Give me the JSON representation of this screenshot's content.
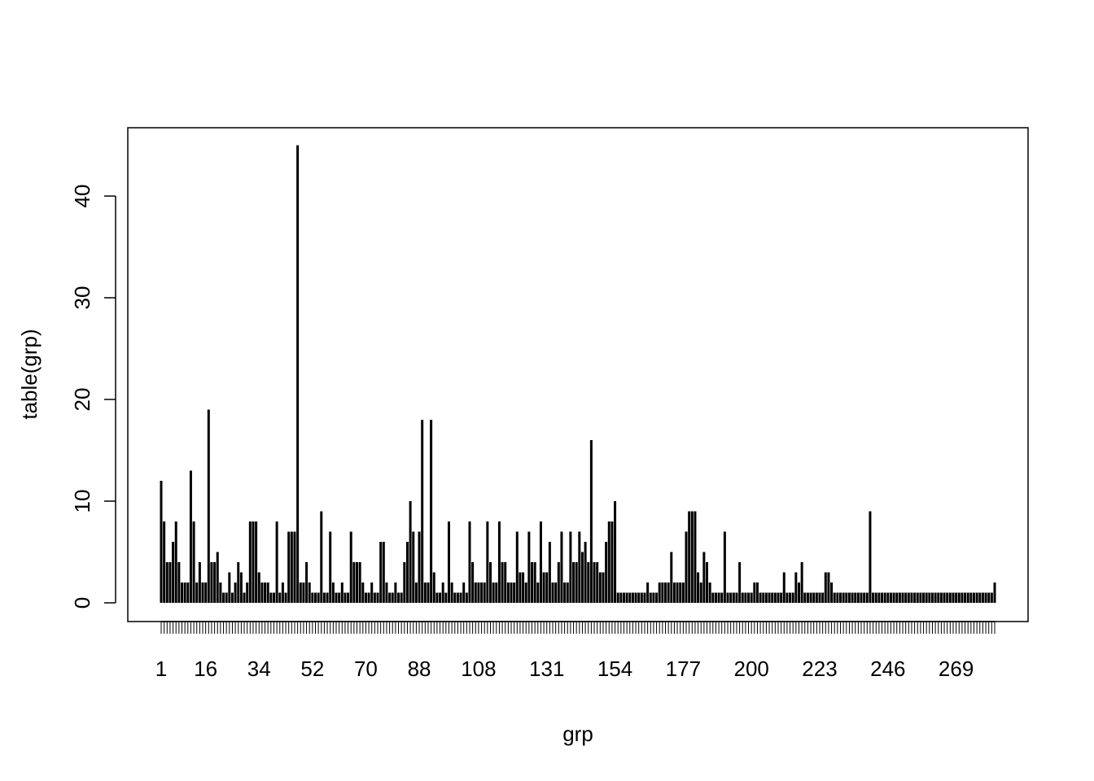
{
  "chart_data": {
    "type": "bar",
    "xlabel": "grp",
    "ylabel": "table(grp)",
    "n_categories": 282,
    "x_tick_labels": [
      "1",
      "16",
      "34",
      "52",
      "70",
      "88",
      "108",
      "131",
      "154",
      "177",
      "200",
      "223",
      "246",
      "269"
    ],
    "y_ticks": [
      0,
      10,
      20,
      30,
      40
    ],
    "ylim": [
      0,
      45
    ],
    "grid": false,
    "bar_color": "#000000",
    "values": [
      12,
      8,
      4,
      4,
      6,
      8,
      4,
      2,
      2,
      2,
      13,
      8,
      2,
      4,
      2,
      2,
      19,
      4,
      4,
      5,
      2,
      1,
      1,
      3,
      1,
      2,
      4,
      3,
      1,
      2,
      8,
      8,
      8,
      3,
      2,
      2,
      2,
      1,
      1,
      8,
      1,
      2,
      1,
      7,
      7,
      7,
      45,
      2,
      2,
      4,
      2,
      1,
      1,
      1,
      9,
      1,
      1,
      7,
      2,
      1,
      1,
      2,
      1,
      1,
      7,
      4,
      4,
      4,
      2,
      1,
      1,
      2,
      1,
      1,
      6,
      6,
      2,
      1,
      1,
      2,
      1,
      1,
      4,
      6,
      10,
      7,
      2,
      7,
      18,
      2,
      2,
      18,
      3,
      1,
      1,
      2,
      1,
      8,
      2,
      1,
      1,
      1,
      2,
      1,
      8,
      4,
      2,
      2,
      2,
      2,
      8,
      4,
      2,
      2,
      8,
      4,
      4,
      2,
      2,
      2,
      7,
      3,
      3,
      2,
      7,
      4,
      4,
      2,
      8,
      3,
      3,
      6,
      2,
      2,
      4,
      7,
      2,
      2,
      7,
      4,
      4,
      7,
      5,
      6,
      4,
      16,
      4,
      4,
      3,
      3,
      6,
      8,
      8,
      10,
      1,
      1,
      1,
      1,
      1,
      1,
      1,
      1,
      1,
      1,
      2,
      1,
      1,
      1,
      2,
      2,
      2,
      2,
      5,
      2,
      2,
      2,
      2,
      7,
      9,
      9,
      9,
      3,
      2,
      5,
      4,
      2,
      1,
      1,
      1,
      1,
      7,
      1,
      1,
      1,
      1,
      4,
      1,
      1,
      1,
      1,
      2,
      2,
      1,
      1,
      1,
      1,
      1,
      1,
      1,
      1,
      3,
      1,
      1,
      1,
      3,
      2,
      4,
      1,
      1,
      1,
      1,
      1,
      1,
      1,
      3,
      3,
      2,
      1,
      1,
      1,
      1,
      1,
      1,
      1,
      1,
      1,
      1,
      1,
      1,
      9,
      1,
      1,
      1,
      1,
      1,
      1,
      1,
      1,
      1,
      1,
      1,
      1,
      1,
      1,
      1,
      1,
      1,
      1,
      1,
      1,
      1,
      1,
      1,
      1,
      1,
      1,
      1,
      1,
      1,
      1,
      1,
      1,
      1,
      1,
      1,
      1,
      1,
      1,
      1,
      1,
      1,
      2
    ]
  }
}
